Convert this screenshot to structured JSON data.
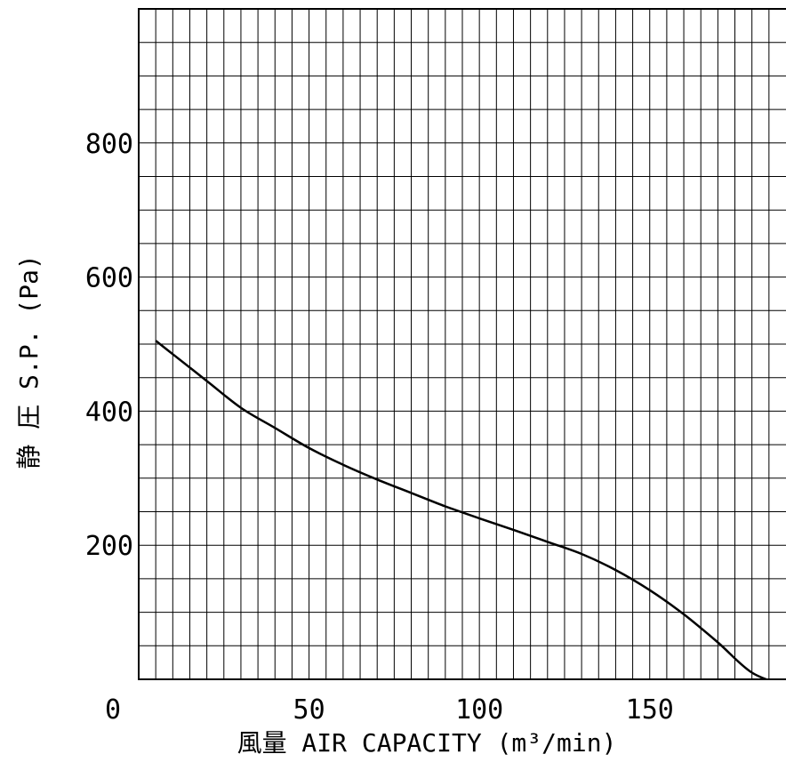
{
  "chart_data": {
    "type": "line",
    "title": "",
    "xlabel": "風量 AIR CAPACITY (m³/min)",
    "ylabel": "静 圧 S.P. (Pa)",
    "origin_label": "0",
    "xlim": [
      0,
      190
    ],
    "ylim": [
      0,
      1000
    ],
    "x_ticks": [
      50,
      100,
      150
    ],
    "x_tick_labels": [
      "50",
      "100",
      "150"
    ],
    "y_ticks": [
      200,
      400,
      600,
      800
    ],
    "y_tick_labels": [
      "200",
      "400",
      "600",
      "800"
    ],
    "grid": true,
    "grid_x_step": 5,
    "grid_y_step": 50,
    "series": [
      {
        "color": "#000000",
        "x": [
          5,
          10,
          20,
          30,
          40,
          50,
          60,
          70,
          80,
          90,
          100,
          110,
          120,
          130,
          140,
          150,
          160,
          170,
          180,
          190
        ],
        "y": [
          505,
          485,
          445,
          405,
          375,
          345,
          320,
          298,
          278,
          258,
          240,
          223,
          205,
          187,
          163,
          133,
          97,
          55,
          10,
          -10
        ]
      }
    ]
  }
}
